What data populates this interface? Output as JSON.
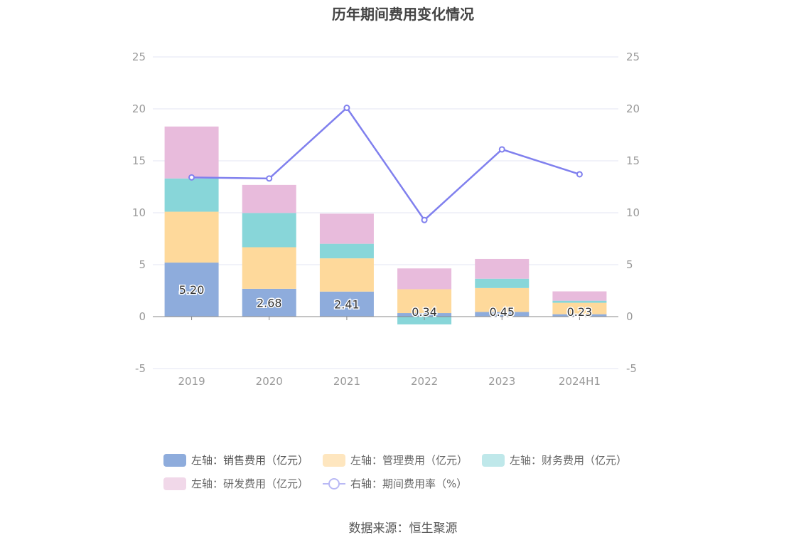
{
  "title": "历年期间费用变化情况",
  "source": "数据来源：恒生聚源",
  "legend": [
    {
      "label": "左轴：销售费用（亿元）",
      "color": "#8eacdc",
      "kind": "bar",
      "active": true
    },
    {
      "label": "左轴：管理费用（亿元）",
      "color": "#fee6bf",
      "kind": "bar",
      "active": false
    },
    {
      "label": "左轴：财务费用（亿元）",
      "color": "#bfe8ea",
      "kind": "bar",
      "active": false
    },
    {
      "label": "左轴：研发费用（亿元）",
      "color": "#f1d8e9",
      "kind": "bar",
      "active": false
    },
    {
      "label": "右轴：期间费用率（%）",
      "color": "#b9b9f5",
      "kind": "line",
      "active": false
    }
  ],
  "chart_data": {
    "type": "bar",
    "stacked": true,
    "categories": [
      "2019",
      "2020",
      "2021",
      "2022",
      "2023",
      "2024H1"
    ],
    "series": [
      {
        "name": "左轴：销售费用（亿元）",
        "axis": "left",
        "color": "#8eacdc",
        "values": [
          5.2,
          2.68,
          2.41,
          0.34,
          0.45,
          0.23
        ],
        "labels": [
          "5.20",
          "2.68",
          "2.41",
          "0.34",
          "0.45",
          "0.23"
        ]
      },
      {
        "name": "左轴：管理费用（亿元）",
        "axis": "left",
        "color": "#fed99b",
        "values": [
          4.9,
          4.0,
          3.2,
          2.3,
          2.3,
          1.1
        ]
      },
      {
        "name": "左轴：财务费用（亿元）",
        "axis": "left",
        "color": "#88d6d9",
        "values": [
          3.2,
          3.3,
          1.4,
          -0.75,
          0.9,
          0.2
        ]
      },
      {
        "name": "左轴：研发费用（亿元）",
        "axis": "left",
        "color": "#e8bbdc",
        "values": [
          5.0,
          2.7,
          2.9,
          2.0,
          1.9,
          0.9
        ]
      },
      {
        "name": "右轴：期间费用率（%）",
        "axis": "right",
        "type": "line",
        "color": "#8080ee",
        "values": [
          13.4,
          13.3,
          20.1,
          9.3,
          16.1,
          13.7
        ]
      }
    ],
    "y_left": {
      "min": -5,
      "max": 25,
      "ticks": [
        -5,
        0,
        5,
        10,
        15,
        20,
        25
      ]
    },
    "y_right": {
      "min": -5,
      "max": 25,
      "ticks": [
        -5,
        0,
        5,
        10,
        15,
        20,
        25
      ]
    },
    "grid": true,
    "legend_position": "bottom"
  }
}
